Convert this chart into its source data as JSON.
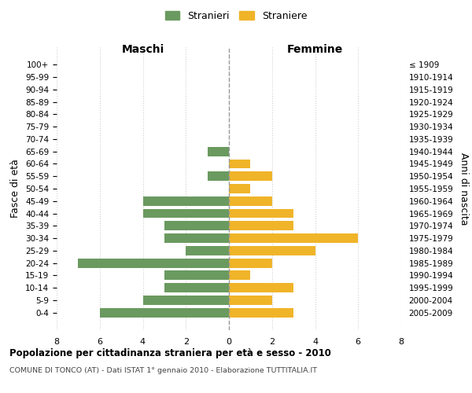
{
  "age_groups": [
    "100+",
    "95-99",
    "90-94",
    "85-89",
    "80-84",
    "75-79",
    "70-74",
    "65-69",
    "60-64",
    "55-59",
    "50-54",
    "45-49",
    "40-44",
    "35-39",
    "30-34",
    "25-29",
    "20-24",
    "15-19",
    "10-14",
    "5-9",
    "0-4"
  ],
  "birth_years": [
    "≤ 1909",
    "1910-1914",
    "1915-1919",
    "1920-1924",
    "1925-1929",
    "1930-1934",
    "1935-1939",
    "1940-1944",
    "1945-1949",
    "1950-1954",
    "1955-1959",
    "1960-1964",
    "1965-1969",
    "1970-1974",
    "1975-1979",
    "1980-1984",
    "1985-1989",
    "1990-1994",
    "1995-1999",
    "2000-2004",
    "2005-2009"
  ],
  "maschi": [
    0,
    0,
    0,
    0,
    0,
    0,
    0,
    1,
    0,
    1,
    0,
    4,
    4,
    3,
    3,
    2,
    7,
    3,
    3,
    4,
    6
  ],
  "femmine": [
    0,
    0,
    0,
    0,
    0,
    0,
    0,
    0,
    1,
    2,
    1,
    2,
    3,
    3,
    6,
    4,
    2,
    1,
    3,
    2,
    3
  ],
  "male_color": "#6a9a5f",
  "female_color": "#f0b429",
  "title": "Popolazione per cittadinanza straniera per età e sesso - 2010",
  "subtitle": "COMUNE DI TONCO (AT) - Dati ISTAT 1° gennaio 2010 - Elaborazione TUTTITALIA.IT",
  "xlabel_left": "Maschi",
  "xlabel_right": "Femmine",
  "ylabel_left": "Fasce di età",
  "ylabel_right": "Anni di nascita",
  "legend_male": "Stranieri",
  "legend_female": "Straniere",
  "xlim": 8,
  "background_color": "#ffffff",
  "grid_color": "#d0d0d0"
}
